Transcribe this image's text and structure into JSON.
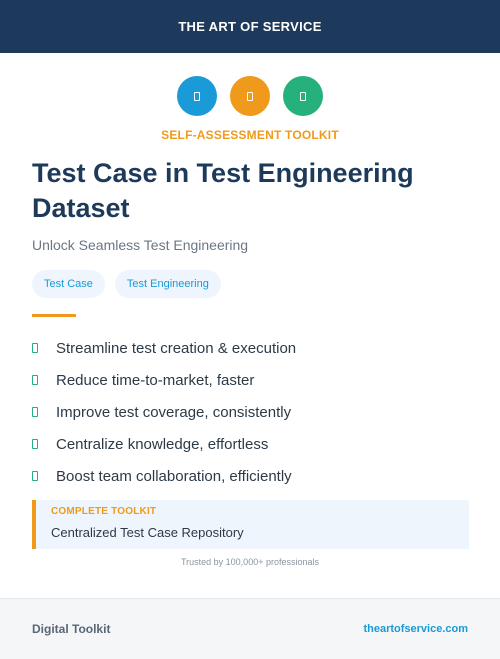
{
  "header": {
    "brand": "THE ART OF SERVICE"
  },
  "icons": [
    {
      "name": "blue-icon",
      "color": "#1a9ad6"
    },
    {
      "name": "orange-icon",
      "color": "#ef9a1a"
    },
    {
      "name": "green-icon",
      "color": "#26b07a"
    }
  ],
  "hero": {
    "eyebrow": "SELF-ASSESSMENT TOOLKIT",
    "title": "Test Case in Test Engineering Dataset",
    "subtitle": "Unlock Seamless Test Engineering"
  },
  "tags": [
    "Test Case",
    "Test Engineering"
  ],
  "benefits": [
    "Streamline test creation & execution",
    "Reduce time-to-market, faster",
    "Improve test coverage, consistently",
    "Centralize knowledge, effortless",
    "Boost team collaboration, efficiently"
  ],
  "callout": {
    "label": "COMPLETE TOOLKIT",
    "value": "Centralized Test Case Repository"
  },
  "trusted": "Trusted by 100,000+ professionals",
  "footer": {
    "left": "Digital Toolkit",
    "right": "theartofservice.com"
  },
  "colors": {
    "navy": "#1d3a5c",
    "accent_orange": "#ef9a1a",
    "accent_blue": "#1a9ad6",
    "accent_green": "#26b07a"
  }
}
